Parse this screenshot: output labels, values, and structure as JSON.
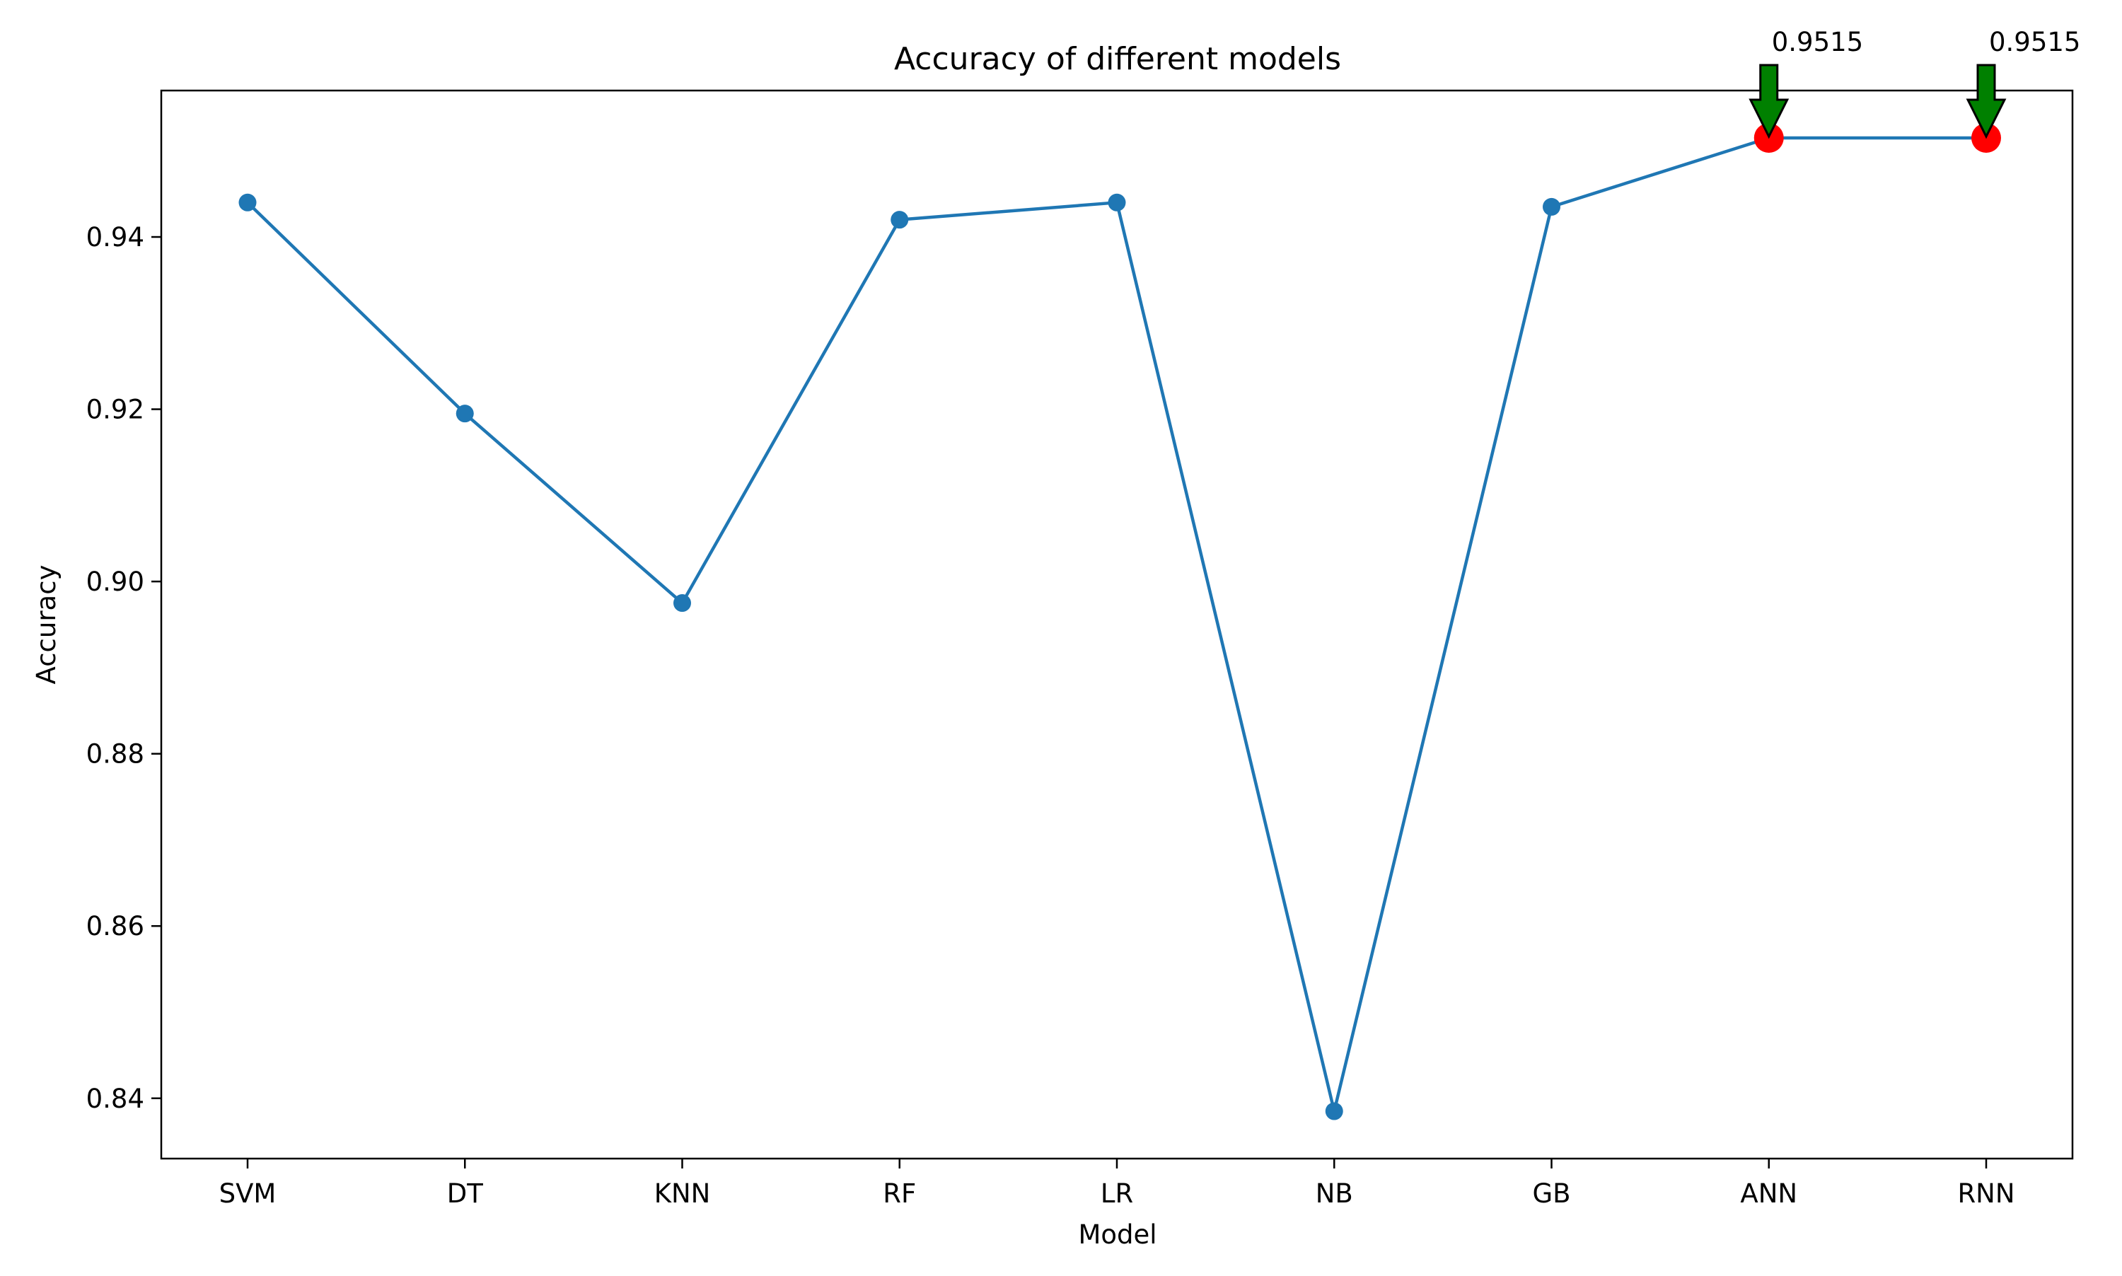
{
  "chart_data": {
    "type": "line",
    "title": "Accuracy of different models",
    "xlabel": "Model",
    "ylabel": "Accuracy",
    "categories": [
      "SVM",
      "DT",
      "KNN",
      "RF",
      "LR",
      "NB",
      "GB",
      "ANN",
      "RNN"
    ],
    "values": [
      0.944,
      0.9195,
      0.8975,
      0.942,
      0.944,
      0.8385,
      0.9435,
      0.9515,
      0.9515
    ],
    "ylim": [
      0.833,
      0.957
    ],
    "yticks": [
      0.84,
      0.86,
      0.88,
      0.9,
      0.92,
      0.94
    ],
    "ytick_labels": [
      "0.84",
      "0.86",
      "0.88",
      "0.90",
      "0.92",
      "0.94"
    ],
    "grid": false,
    "highlight": {
      "categories": [
        "ANN",
        "RNN"
      ],
      "labels": [
        "0.9515",
        "0.9515"
      ]
    },
    "colors": {
      "line": "#1f77b4",
      "marker": "#1f77b4",
      "highlight_marker": "#ff0000",
      "arrow_fill": "#008000",
      "arrow_edge": "#000000"
    }
  }
}
